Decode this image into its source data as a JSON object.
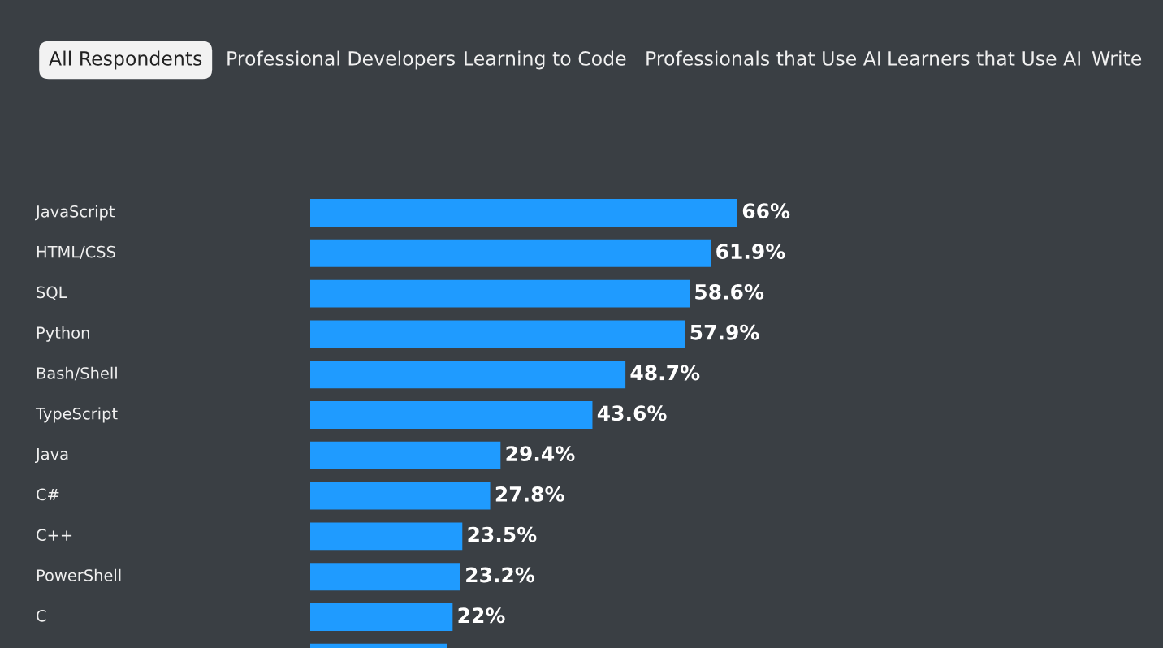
{
  "chart_data": {
    "type": "bar",
    "orientation": "horizontal",
    "categories": [
      "JavaScript",
      "HTML/CSS",
      "SQL",
      "Python",
      "Bash/Shell",
      "TypeScript",
      "Java",
      "C#",
      "C++",
      "PowerShell",
      "C",
      null
    ],
    "values": [
      66,
      61.9,
      58.6,
      57.9,
      48.7,
      43.6,
      29.4,
      27.8,
      23.5,
      23.2,
      22,
      21.1
    ],
    "value_labels": [
      "66%",
      "61.9%",
      "58.6%",
      "57.9%",
      "48.7%",
      "43.6%",
      "29.4%",
      "27.8%",
      "23.5%",
      "23.2%",
      "22%",
      null
    ],
    "color": "#1f9bff",
    "annotations": [
      "All Respondents",
      "Professional Developers",
      "Learning to Code",
      "Professionals that Use AI",
      "Learners that Use AI",
      "Write"
    ]
  }
}
